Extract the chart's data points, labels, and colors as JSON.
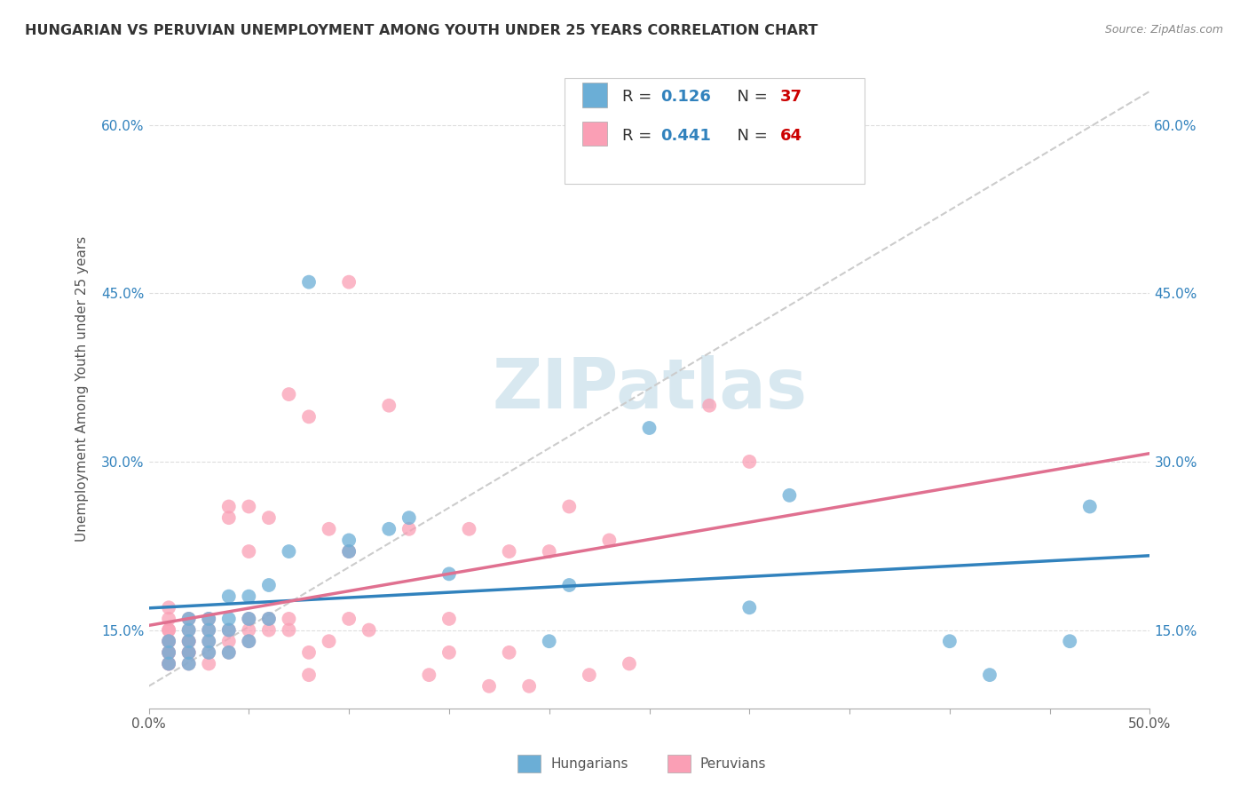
{
  "title": "HUNGARIAN VS PERUVIAN UNEMPLOYMENT AMONG YOUTH UNDER 25 YEARS CORRELATION CHART",
  "source": "Source: ZipAtlas.com",
  "ylabel": "Unemployment Among Youth under 25 years",
  "xlim": [
    0,
    50
  ],
  "ylim": [
    8,
    65
  ],
  "xtick_positions": [
    0,
    5,
    10,
    15,
    20,
    25,
    30,
    35,
    40,
    45,
    50
  ],
  "xtick_labels_sparse": {
    "0": "0.0%",
    "50": "50.0%"
  },
  "yticks": [
    15,
    30,
    45,
    60
  ],
  "yticklabels": [
    "15.0%",
    "30.0%",
    "45.0%",
    "60.0%"
  ],
  "hungarian_R": "0.126",
  "hungarian_N": "37",
  "peruvian_R": "0.441",
  "peruvian_N": "64",
  "blue_color": "#6baed6",
  "pink_color": "#fa9fb5",
  "blue_line_color": "#3182bd",
  "pink_line_color": "#e07090",
  "ref_line_color": "#cccccc",
  "watermark": "ZIPatlas",
  "background_color": "#ffffff",
  "grid_color": "#dddddd",
  "hu_x": [
    1,
    1,
    1,
    2,
    2,
    2,
    2,
    2,
    3,
    3,
    3,
    3,
    4,
    4,
    4,
    4,
    5,
    5,
    5,
    6,
    6,
    7,
    8,
    10,
    10,
    12,
    13,
    15,
    20,
    21,
    25,
    30,
    32,
    40,
    42,
    46,
    47
  ],
  "hu_y": [
    12,
    13,
    14,
    12,
    13,
    14,
    15,
    16,
    13,
    14,
    15,
    16,
    13,
    15,
    16,
    18,
    14,
    16,
    18,
    16,
    19,
    22,
    46,
    22,
    23,
    24,
    25,
    20,
    14,
    19,
    33,
    17,
    27,
    14,
    11,
    14,
    26
  ],
  "pe_x": [
    1,
    1,
    1,
    1,
    1,
    1,
    1,
    1,
    1,
    1,
    2,
    2,
    2,
    2,
    2,
    2,
    2,
    3,
    3,
    3,
    3,
    3,
    4,
    4,
    4,
    4,
    4,
    5,
    5,
    5,
    5,
    5,
    6,
    6,
    6,
    7,
    7,
    7,
    8,
    8,
    8,
    9,
    9,
    10,
    10,
    10,
    11,
    12,
    13,
    14,
    15,
    15,
    16,
    17,
    18,
    18,
    19,
    20,
    21,
    22,
    23,
    24,
    28,
    30
  ],
  "pe_y": [
    12,
    12,
    13,
    13,
    14,
    14,
    15,
    15,
    16,
    17,
    12,
    13,
    13,
    14,
    14,
    15,
    16,
    12,
    13,
    14,
    15,
    16,
    13,
    14,
    15,
    25,
    26,
    14,
    15,
    16,
    22,
    26,
    15,
    16,
    25,
    15,
    16,
    36,
    11,
    13,
    34,
    14,
    24,
    16,
    22,
    46,
    15,
    35,
    24,
    11,
    13,
    16,
    24,
    10,
    13,
    22,
    10,
    22,
    26,
    11,
    23,
    12,
    35,
    30
  ]
}
